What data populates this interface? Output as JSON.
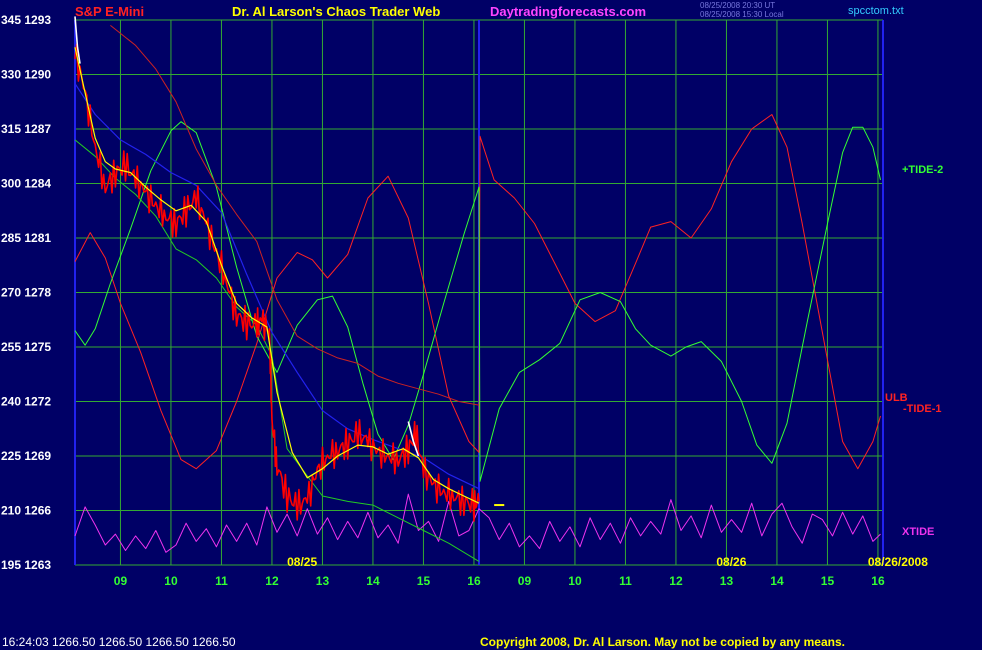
{
  "header": {
    "instrument": "S&P E-Mini",
    "title": "Dr. Al Larson's Chaos Trader Web",
    "site": "Daytradingforecasts.com",
    "timestamp_line1": "08/25/2008 20:30 UT",
    "timestamp_line2": "08/25/2008 15:30 Local",
    "file": "spcctom.txt"
  },
  "footer": {
    "quote": "16:24:03  1266.50  1266.50  1266.50  1266.50",
    "copyright": "Copyright 2008, Dr. Al Larson. May not be copied by any means."
  },
  "colors": {
    "background": "#000066",
    "grid": "#33aa33",
    "price": "#ff0000",
    "average": "#ffff00",
    "mid_average": "#22cc22",
    "slow_average": "#2222ee",
    "tide2": "#33ff33",
    "tide1": "#ff2222",
    "xtide": "#ee33ee",
    "ulb": "#cc2222"
  },
  "chart_data": {
    "type": "line",
    "y_axis_left": {
      "labels": [
        "345 1293",
        "330 1290",
        "315 1287",
        "300 1284",
        "285 1281",
        "270 1278",
        "255 1275",
        "240 1272",
        "225 1269",
        "210 1266",
        "195 1263"
      ],
      "ylim": [
        1263,
        1293
      ]
    },
    "x_axis": {
      "labels": [
        "09",
        "10",
        "11",
        "12",
        "13",
        "14",
        "15",
        "16",
        "09",
        "10",
        "11",
        "12",
        "13",
        "14",
        "15",
        "16"
      ],
      "date_labels": [
        "08/25",
        "08/26",
        "08/26/2008"
      ],
      "xlim": [
        8.1,
        24.1
      ]
    },
    "series_labels": {
      "tide2": "+TIDE-2",
      "ulb": "ULB",
      "tide1": "-TIDE-1",
      "xtide": "XTIDE"
    },
    "price_close": [
      [
        8.1,
        1291.2
      ],
      [
        8.3,
        1289
      ],
      [
        8.5,
        1286
      ],
      [
        8.7,
        1283.8
      ],
      [
        8.9,
        1284.6
      ],
      [
        9.1,
        1285
      ],
      [
        9.3,
        1284.2
      ],
      [
        9.5,
        1283.5
      ],
      [
        9.7,
        1282.8
      ],
      [
        9.9,
        1282.2
      ],
      [
        10.1,
        1281.8
      ],
      [
        10.3,
        1282.5
      ],
      [
        10.5,
        1283.2
      ],
      [
        10.7,
        1281.8
      ],
      [
        10.9,
        1280.2
      ],
      [
        11.1,
        1278.6
      ],
      [
        11.3,
        1276.8
      ],
      [
        11.5,
        1276.3
      ],
      [
        11.7,
        1276.2
      ],
      [
        11.8,
        1276.5
      ],
      [
        11.95,
        1275.8
      ],
      [
        12.0,
        1271
      ],
      [
        12.1,
        1268.5
      ],
      [
        12.3,
        1266.8
      ],
      [
        12.5,
        1266.2
      ],
      [
        12.7,
        1266.6
      ],
      [
        12.9,
        1268.2
      ],
      [
        13.1,
        1269.0
      ],
      [
        13.3,
        1269.3
      ],
      [
        13.5,
        1269.7
      ],
      [
        13.7,
        1270.2
      ],
      [
        13.9,
        1269.8
      ],
      [
        14.1,
        1269.2
      ],
      [
        14.3,
        1269.0
      ],
      [
        14.5,
        1268.8
      ],
      [
        14.7,
        1269.4
      ],
      [
        14.85,
        1270.2
      ],
      [
        15.0,
        1268.2
      ],
      [
        15.2,
        1267.4
      ],
      [
        15.4,
        1267.0
      ],
      [
        15.6,
        1266.8
      ],
      [
        15.8,
        1266.5
      ],
      [
        16.0,
        1266.3
      ],
      [
        16.1,
        1266.5
      ]
    ],
    "price_white_segments": [
      [
        [
          8.1,
          1293.2
        ],
        [
          8.15,
          1291.5
        ],
        [
          8.2,
          1290.6
        ]
      ],
      [
        [
          14.7,
          1270.9
        ],
        [
          14.8,
          1269.8
        ],
        [
          14.9,
          1269.0
        ]
      ]
    ],
    "average": [
      [
        8.1,
        1291.5
      ],
      [
        8.3,
        1289
      ],
      [
        8.5,
        1286.5
      ],
      [
        8.7,
        1285.2
      ],
      [
        8.9,
        1284.8
      ],
      [
        9.2,
        1284.6
      ],
      [
        9.5,
        1283.8
      ],
      [
        9.8,
        1283.1
      ],
      [
        10.1,
        1282.5
      ],
      [
        10.4,
        1282.8
      ],
      [
        10.7,
        1281.9
      ],
      [
        11.0,
        1279.5
      ],
      [
        11.3,
        1277.4
      ],
      [
        11.6,
        1276.6
      ],
      [
        11.9,
        1276.1
      ],
      [
        12.1,
        1272.5
      ],
      [
        12.4,
        1269.2
      ],
      [
        12.7,
        1267.8
      ],
      [
        13.0,
        1268.3
      ],
      [
        13.3,
        1269.0
      ],
      [
        13.7,
        1269.6
      ],
      [
        14.0,
        1269.5
      ],
      [
        14.3,
        1269.1
      ],
      [
        14.6,
        1269.4
      ],
      [
        14.9,
        1268.9
      ],
      [
        15.2,
        1267.7
      ],
      [
        15.5,
        1267.2
      ],
      [
        15.8,
        1266.8
      ],
      [
        16.1,
        1266.4
      ]
    ],
    "mid_average": [
      [
        8.1,
        1286.4
      ],
      [
        8.5,
        1285.5
      ],
      [
        8.9,
        1284.3
      ],
      [
        9.3,
        1283.4
      ],
      [
        9.7,
        1282.2
      ],
      [
        10.1,
        1280.4
      ],
      [
        10.5,
        1279.8
      ],
      [
        10.9,
        1278.8
      ],
      [
        11.3,
        1277.2
      ],
      [
        11.7,
        1276.2
      ],
      [
        12.0,
        1274.5
      ],
      [
        12.3,
        1269.4
      ],
      [
        12.7,
        1267.9
      ],
      [
        13.0,
        1266.8
      ],
      [
        13.5,
        1266.5
      ],
      [
        14.0,
        1266.3
      ],
      [
        14.5,
        1265.6
      ],
      [
        15.0,
        1264.9
      ],
      [
        15.5,
        1264.2
      ],
      [
        16.1,
        1263.2
      ]
    ],
    "slow_average": [
      [
        8.1,
        1289.5
      ],
      [
        8.5,
        1287.8
      ],
      [
        9.0,
        1286.4
      ],
      [
        9.5,
        1285.6
      ],
      [
        10.0,
        1284.6
      ],
      [
        10.5,
        1283.9
      ],
      [
        11.0,
        1282.4
      ],
      [
        11.5,
        1279.0
      ],
      [
        12.0,
        1275.8
      ],
      [
        12.5,
        1273.6
      ],
      [
        13.0,
        1271.5
      ],
      [
        13.5,
        1270.5
      ],
      [
        14.0,
        1269.9
      ],
      [
        14.5,
        1269.4
      ],
      [
        15.0,
        1268.9
      ],
      [
        15.5,
        1268.0
      ],
      [
        16.1,
        1267.2
      ]
    ],
    "ulb": [
      [
        8.8,
        1292.7
      ],
      [
        9.3,
        1291.6
      ],
      [
        9.7,
        1290.3
      ],
      [
        10.1,
        1288.5
      ],
      [
        10.5,
        1285.9
      ],
      [
        10.9,
        1283.9
      ],
      [
        11.3,
        1282.3
      ],
      [
        11.7,
        1280.8
      ],
      [
        12.1,
        1277.6
      ],
      [
        12.5,
        1275.6
      ],
      [
        12.9,
        1274.9
      ],
      [
        13.3,
        1274.4
      ],
      [
        13.7,
        1274.1
      ],
      [
        14.1,
        1273.4
      ],
      [
        14.5,
        1273.0
      ],
      [
        14.9,
        1272.7
      ],
      [
        15.3,
        1272.4
      ],
      [
        15.7,
        1272.0
      ],
      [
        16.1,
        1271.8
      ]
    ],
    "tide2": [
      [
        8.1,
        1275.9
      ],
      [
        8.3,
        1275.1
      ],
      [
        8.5,
        1276.0
      ],
      [
        8.8,
        1278.5
      ],
      [
        9.2,
        1281.5
      ],
      [
        9.6,
        1284.7
      ],
      [
        10.0,
        1286.9
      ],
      [
        10.2,
        1287.4
      ],
      [
        10.5,
        1286.8
      ],
      [
        10.9,
        1283.8
      ],
      [
        11.3,
        1279.4
      ],
      [
        11.7,
        1275.6
      ],
      [
        12.1,
        1273.6
      ],
      [
        12.5,
        1276.2
      ],
      [
        12.9,
        1277.6
      ],
      [
        13.2,
        1277.8
      ],
      [
        13.5,
        1276.1
      ],
      [
        13.8,
        1273.0
      ],
      [
        14.1,
        1270.2
      ],
      [
        14.4,
        1268.8
      ],
      [
        14.7,
        1270.7
      ],
      [
        15.0,
        1273.5
      ],
      [
        15.4,
        1277.4
      ],
      [
        15.8,
        1281.2
      ],
      [
        16.1,
        1283.8
      ],
      [
        16.12,
        1267.6
      ],
      [
        16.5,
        1271.6
      ],
      [
        16.9,
        1273.6
      ],
      [
        17.3,
        1274.3
      ],
      [
        17.7,
        1275.2
      ],
      [
        18.1,
        1277.6
      ],
      [
        18.5,
        1278.0
      ],
      [
        18.9,
        1277.5
      ],
      [
        19.2,
        1276.0
      ],
      [
        19.5,
        1275.1
      ],
      [
        19.9,
        1274.5
      ],
      [
        20.2,
        1275.0
      ],
      [
        20.5,
        1275.3
      ],
      [
        20.9,
        1274.2
      ],
      [
        21.3,
        1272.0
      ],
      [
        21.6,
        1269.6
      ],
      [
        21.9,
        1268.6
      ],
      [
        22.2,
        1270.8
      ],
      [
        22.6,
        1276.4
      ],
      [
        23.0,
        1281.8
      ],
      [
        23.3,
        1285.7
      ],
      [
        23.5,
        1287.1
      ],
      [
        23.7,
        1287.1
      ],
      [
        23.9,
        1286.0
      ],
      [
        24.05,
        1284.2
      ]
    ],
    "tide1": [
      [
        8.1,
        1279.7
      ],
      [
        8.4,
        1281.3
      ],
      [
        8.7,
        1279.9
      ],
      [
        9.0,
        1277.4
      ],
      [
        9.4,
        1274.7
      ],
      [
        9.8,
        1271.5
      ],
      [
        10.2,
        1268.8
      ],
      [
        10.5,
        1268.3
      ],
      [
        10.9,
        1269.3
      ],
      [
        11.3,
        1272.0
      ],
      [
        11.7,
        1275.2
      ],
      [
        12.1,
        1278.8
      ],
      [
        12.5,
        1280.2
      ],
      [
        12.8,
        1279.8
      ],
      [
        13.1,
        1278.8
      ],
      [
        13.5,
        1280.1
      ],
      [
        13.9,
        1283.2
      ],
      [
        14.3,
        1284.4
      ],
      [
        14.7,
        1282.1
      ],
      [
        15.1,
        1277.4
      ],
      [
        15.5,
        1272.3
      ],
      [
        15.9,
        1269.8
      ],
      [
        16.1,
        1269.2
      ],
      [
        16.12,
        1286.6
      ],
      [
        16.4,
        1284.2
      ],
      [
        16.8,
        1283.2
      ],
      [
        17.2,
        1281.8
      ],
      [
        17.6,
        1279.6
      ],
      [
        18.0,
        1277.4
      ],
      [
        18.4,
        1276.4
      ],
      [
        18.8,
        1277.0
      ],
      [
        19.2,
        1279.6
      ],
      [
        19.5,
        1281.6
      ],
      [
        19.9,
        1281.9
      ],
      [
        20.3,
        1281.0
      ],
      [
        20.7,
        1282.6
      ],
      [
        21.1,
        1285.2
      ],
      [
        21.5,
        1287.0
      ],
      [
        21.9,
        1287.8
      ],
      [
        22.2,
        1286.0
      ],
      [
        22.5,
        1281.8
      ],
      [
        22.9,
        1275.8
      ],
      [
        23.3,
        1269.8
      ],
      [
        23.6,
        1268.3
      ],
      [
        23.9,
        1269.8
      ],
      [
        24.05,
        1271.2
      ]
    ],
    "xtide": [
      [
        8.1,
        1264.6
      ],
      [
        8.3,
        1266.2
      ],
      [
        8.5,
        1265.2
      ],
      [
        8.7,
        1264.1
      ],
      [
        8.9,
        1264.7
      ],
      [
        9.1,
        1263.8
      ],
      [
        9.3,
        1264.6
      ],
      [
        9.5,
        1263.9
      ],
      [
        9.7,
        1264.9
      ],
      [
        9.9,
        1263.7
      ],
      [
        10.1,
        1264.1
      ],
      [
        10.3,
        1265.3
      ],
      [
        10.5,
        1264.3
      ],
      [
        10.7,
        1265.0
      ],
      [
        10.9,
        1264.0
      ],
      [
        11.1,
        1265.2
      ],
      [
        11.3,
        1264.3
      ],
      [
        11.5,
        1265.3
      ],
      [
        11.7,
        1264.1
      ],
      [
        11.9,
        1266.2
      ],
      [
        12.1,
        1264.8
      ],
      [
        12.3,
        1265.8
      ],
      [
        12.5,
        1264.6
      ],
      [
        12.7,
        1266.1
      ],
      [
        12.9,
        1264.7
      ],
      [
        13.1,
        1265.6
      ],
      [
        13.3,
        1264.4
      ],
      [
        13.5,
        1265.4
      ],
      [
        13.7,
        1264.5
      ],
      [
        13.9,
        1265.9
      ],
      [
        14.1,
        1264.5
      ],
      [
        14.3,
        1265.2
      ],
      [
        14.5,
        1264.2
      ],
      [
        14.7,
        1266.9
      ],
      [
        14.9,
        1264.9
      ],
      [
        15.1,
        1265.4
      ],
      [
        15.3,
        1264.3
      ],
      [
        15.5,
        1266.5
      ],
      [
        15.7,
        1264.6
      ],
      [
        15.9,
        1264.9
      ],
      [
        16.1,
        1266.1
      ],
      [
        16.3,
        1265.6
      ],
      [
        16.5,
        1264.4
      ],
      [
        16.7,
        1265.3
      ],
      [
        16.9,
        1264.0
      ],
      [
        17.1,
        1264.6
      ],
      [
        17.3,
        1263.9
      ],
      [
        17.5,
        1265.4
      ],
      [
        17.7,
        1264.3
      ],
      [
        17.9,
        1265.1
      ],
      [
        18.1,
        1264.0
      ],
      [
        18.3,
        1265.6
      ],
      [
        18.5,
        1264.4
      ],
      [
        18.7,
        1265.3
      ],
      [
        18.9,
        1264.2
      ],
      [
        19.1,
        1265.6
      ],
      [
        19.3,
        1264.6
      ],
      [
        19.5,
        1265.4
      ],
      [
        19.7,
        1264.7
      ],
      [
        19.9,
        1266.6
      ],
      [
        20.1,
        1264.9
      ],
      [
        20.3,
        1265.7
      ],
      [
        20.5,
        1264.5
      ],
      [
        20.7,
        1266.3
      ],
      [
        20.9,
        1264.8
      ],
      [
        21.1,
        1265.5
      ],
      [
        21.3,
        1264.8
      ],
      [
        21.5,
        1266.4
      ],
      [
        21.7,
        1264.6
      ],
      [
        21.9,
        1265.8
      ],
      [
        22.1,
        1266.4
      ],
      [
        22.3,
        1265.1
      ],
      [
        22.5,
        1264.2
      ],
      [
        22.7,
        1265.8
      ],
      [
        22.9,
        1265.5
      ],
      [
        23.1,
        1264.6
      ],
      [
        23.3,
        1265.9
      ],
      [
        23.5,
        1264.7
      ],
      [
        23.7,
        1265.7
      ],
      [
        23.9,
        1264.3
      ],
      [
        24.05,
        1264.7
      ]
    ],
    "forecast_marker": {
      "x": [
        16.4,
        16.6
      ],
      "y": 1266.3,
      "color": "#ffff00"
    }
  }
}
